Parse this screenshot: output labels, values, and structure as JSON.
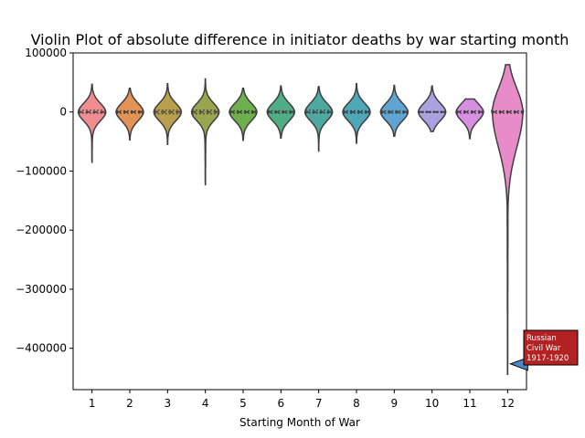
{
  "chart_data": {
    "type": "violin",
    "title": "Violin Plot of absolute difference in initiator deaths by war starting month",
    "xlabel": "Starting Month of War",
    "ylabel": "",
    "categories": [
      "1",
      "2",
      "3",
      "4",
      "5",
      "6",
      "7",
      "8",
      "9",
      "10",
      "11",
      "12"
    ],
    "ylim": [
      -470000,
      100000
    ],
    "yticks": [
      100000,
      0,
      -100000,
      -200000,
      -300000,
      -400000
    ],
    "ytick_labels": [
      "100000",
      "0",
      "−100000",
      "−200000",
      "−300000",
      "−400000"
    ],
    "grid": false,
    "legend": "none",
    "violins": [
      {
        "category": "1",
        "color": "#ef8d91",
        "min": -85000,
        "max": 47000,
        "median": 0,
        "q1": -2000,
        "q3": 3000
      },
      {
        "category": "2",
        "color": "#e49356",
        "min": -47000,
        "max": 40000,
        "median": 0,
        "q1": -2000,
        "q3": 2000
      },
      {
        "category": "3",
        "color": "#b8a04e",
        "min": -55000,
        "max": 48000,
        "median": 0,
        "q1": -3000,
        "q3": 3000
      },
      {
        "category": "4",
        "color": "#9aa64e",
        "min": -123000,
        "max": 56000,
        "median": 0,
        "q1": -3000,
        "q3": 3000
      },
      {
        "category": "5",
        "color": "#6eb04e",
        "min": -48000,
        "max": 40000,
        "median": 0,
        "q1": -2000,
        "q3": 2000
      },
      {
        "category": "6",
        "color": "#4fae86",
        "min": -44000,
        "max": 44000,
        "median": 0,
        "q1": -2000,
        "q3": 2000
      },
      {
        "category": "7",
        "color": "#4ea9a2",
        "min": -66000,
        "max": 43000,
        "median": 0,
        "q1": -2000,
        "q3": 3000
      },
      {
        "category": "8",
        "color": "#4fa8b8",
        "min": -53000,
        "max": 48000,
        "median": 0,
        "q1": -2000,
        "q3": 2000
      },
      {
        "category": "9",
        "color": "#5fa4d2",
        "min": -41000,
        "max": 45000,
        "median": 0,
        "q1": -2000,
        "q3": 2000
      },
      {
        "category": "10",
        "color": "#a8a2e0",
        "min": -33000,
        "max": 44000,
        "median": 0,
        "q1": -1000,
        "q3": 1000
      },
      {
        "category": "11",
        "color": "#d88fe3",
        "min": -45000,
        "max": 22000,
        "median": 0,
        "q1": -2000,
        "q3": 2000
      },
      {
        "category": "12",
        "color": "#e78cc8",
        "min": -444000,
        "max": 80000,
        "median": 0,
        "q1": -2000,
        "q3": 2000
      }
    ],
    "annotations": [
      {
        "text": [
          "Russian",
          "Civil War",
          "1917-1920"
        ],
        "category": "12",
        "y": -428000,
        "box_color": "#b22222",
        "arrow_color": "#4a88c6"
      }
    ]
  }
}
